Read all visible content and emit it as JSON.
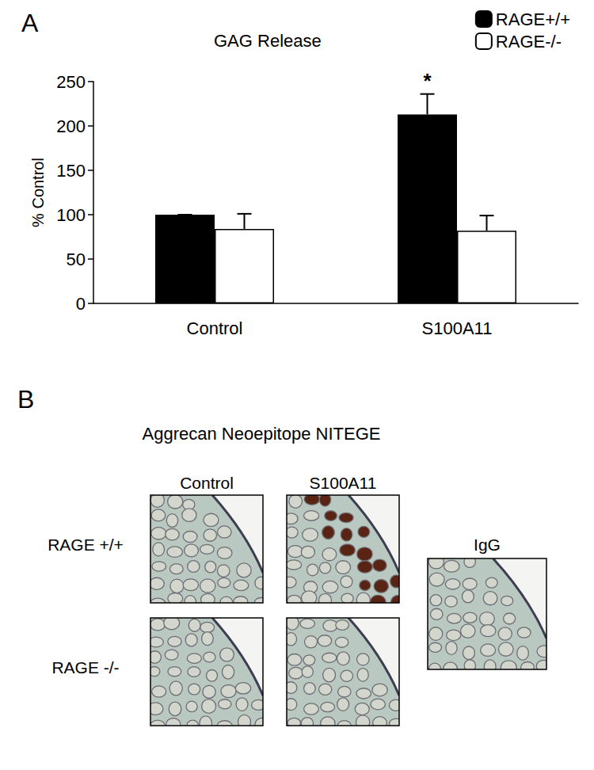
{
  "chart_data": {
    "type": "bar",
    "panel_label": "A",
    "title": "GAG Release",
    "y_label": "% Control",
    "categories": [
      "Control",
      "S100A11"
    ],
    "series": [
      {
        "name": "RAGE+/+",
        "color": "#000000",
        "values": [
          100,
          213
        ],
        "errors": [
          0,
          23
        ]
      },
      {
        "name": "RAGE-/-",
        "color": "#ffffff",
        "values": [
          84,
          82
        ],
        "errors": [
          17,
          17
        ]
      }
    ],
    "ylim": [
      0,
      250
    ],
    "yticks": [
      0,
      50,
      100,
      150,
      200,
      250
    ],
    "grid": false,
    "legend": "top-right",
    "annotations": [
      {
        "text": "*",
        "category": "S100A11",
        "series": "RAGE+/+"
      }
    ]
  },
  "panel_b": {
    "panel_label": "B",
    "title": "Aggrecan Neoepitope NITEGE",
    "columns": [
      "Control",
      "S100A11"
    ],
    "rows": [
      "RAGE +/+",
      "RAGE -/-"
    ],
    "control_label": "IgG"
  }
}
